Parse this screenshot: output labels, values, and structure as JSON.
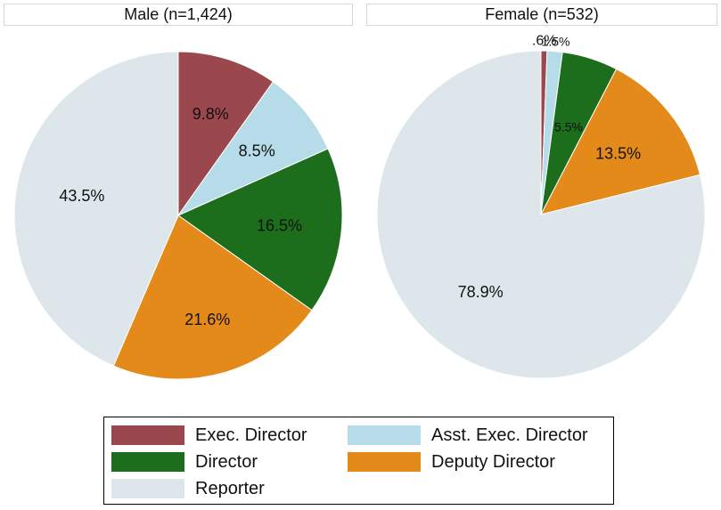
{
  "chart_data": [
    {
      "type": "pie",
      "title": "Male (n=1,424)",
      "slices": [
        {
          "category": "Exec. Director",
          "value": 9.8,
          "label": "9.8%"
        },
        {
          "category": "Asst. Exec. Director",
          "value": 8.5,
          "label": "8.5%"
        },
        {
          "category": "Director",
          "value": 16.5,
          "label": "16.5%"
        },
        {
          "category": "Deputy Director",
          "value": 21.6,
          "label": "21.6%"
        },
        {
          "category": "Reporter",
          "value": 43.5,
          "label": "43.5%"
        }
      ]
    },
    {
      "type": "pie",
      "title": "Female (n=532)",
      "slices": [
        {
          "category": "Exec. Director",
          "value": 0.6,
          "label": ".6%"
        },
        {
          "category": "Asst. Exec. Director",
          "value": 1.5,
          "label": "1.5%"
        },
        {
          "category": "Director",
          "value": 5.5,
          "label": "5.5%"
        },
        {
          "category": "Deputy Director",
          "value": 13.5,
          "label": "13.5%"
        },
        {
          "category": "Reporter",
          "value": 78.9,
          "label": "78.9%"
        }
      ]
    }
  ],
  "legend": {
    "placement": "bottom",
    "items": [
      {
        "label": "Exec. Director",
        "color": "#9b474e"
      },
      {
        "label": "Asst. Exec. Director",
        "color": "#b5dce8"
      },
      {
        "label": "Director",
        "color": "#1c6e1c"
      },
      {
        "label": "Deputy Director",
        "color": "#e48a1a"
      },
      {
        "label": "Reporter",
        "color": "#dde7eb"
      }
    ]
  }
}
